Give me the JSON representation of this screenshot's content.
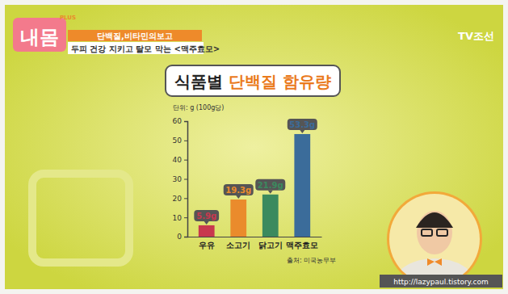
{
  "chart_data": {
    "type": "bar",
    "title": "식품별 단백질 함유량",
    "y_label": "단위: g (100g당)",
    "categories": [
      "우유",
      "소고기",
      "닭고기",
      "맥주효모"
    ],
    "values": [
      5.9,
      19.3,
      21.9,
      53.3
    ],
    "value_labels": [
      "5.9g",
      "19.3g",
      "21.9g",
      "53.3g"
    ],
    "colors": [
      "#c8384e",
      "#ea8b2c",
      "#3b8a5e",
      "#3b6c9a"
    ],
    "ylim": [
      0,
      60
    ],
    "yticks": [
      0,
      10,
      20,
      30,
      40,
      50,
      60
    ],
    "grid": false,
    "data_labels": true,
    "annotations": [
      "출처: 미국농무부"
    ]
  },
  "page": {
    "logo": "내몸",
    "logo_plus": "PLUS",
    "banner": "단백질,비타민의보고",
    "headline": "두피 건강 지키고 탈모 막는 <맥주효모>",
    "channel": "TV조선",
    "watermark": "http://lazypaul.tistory.com"
  }
}
